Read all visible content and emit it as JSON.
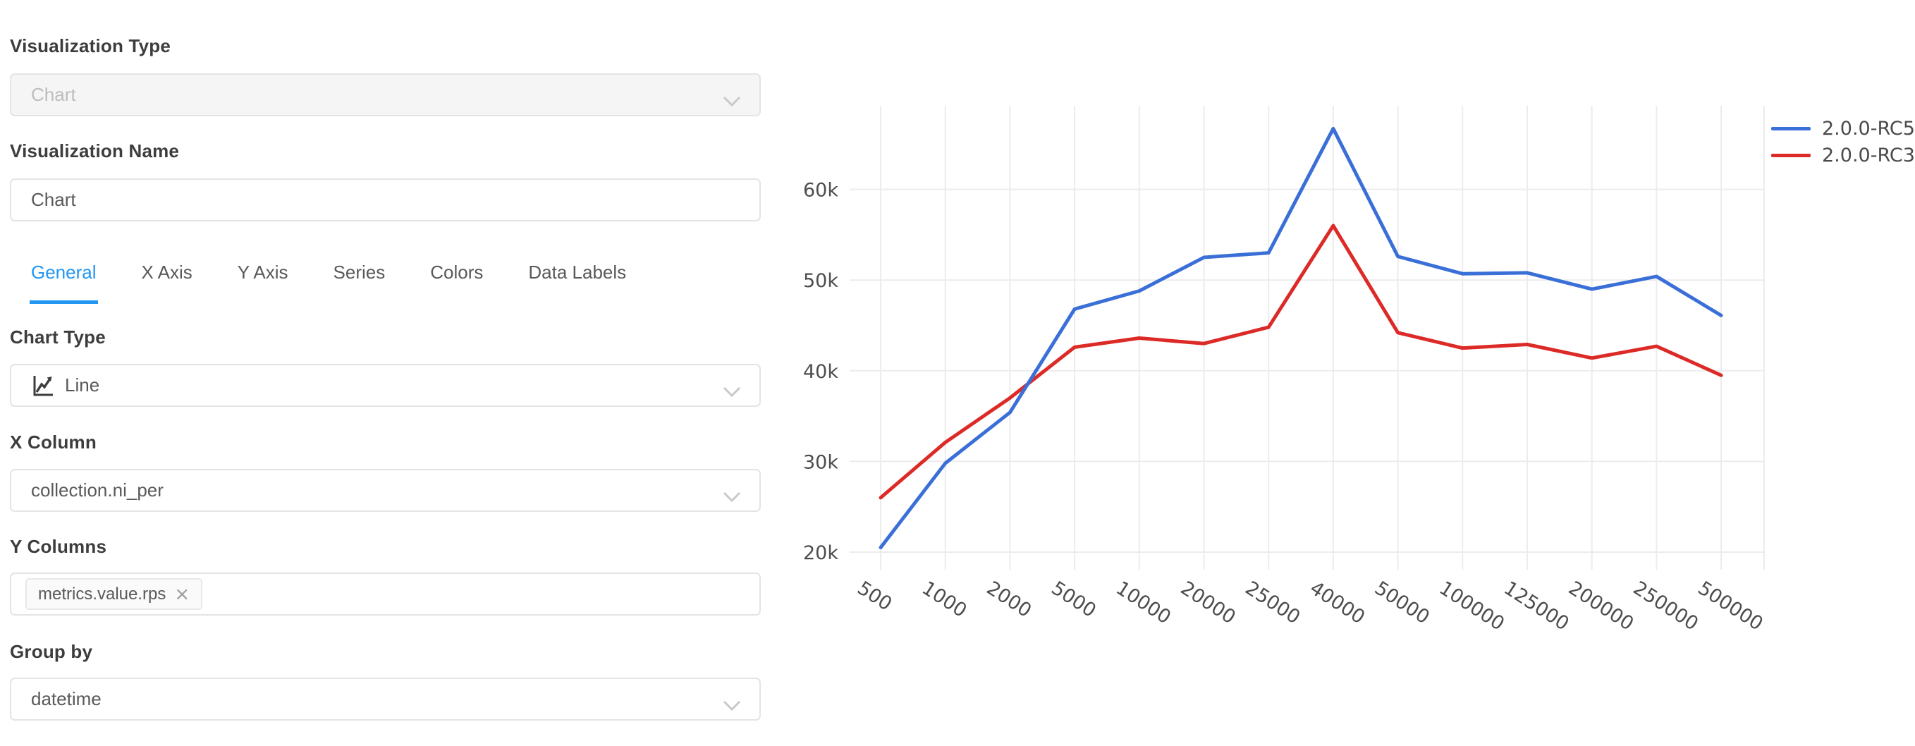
{
  "panel": {
    "tabs": [
      {
        "label": "General",
        "active": true
      },
      {
        "label": "X Axis",
        "active": false
      },
      {
        "label": "Y Axis",
        "active": false
      },
      {
        "label": "Series",
        "active": false
      },
      {
        "label": "Colors",
        "active": false
      },
      {
        "label": "Data Labels",
        "active": false
      }
    ],
    "fields": {
      "visualization_type": {
        "label": "Visualization Type",
        "value": "Chart",
        "disabled": true
      },
      "visualization_name": {
        "label": "Visualization Name",
        "value": "Chart"
      },
      "chart_type": {
        "label": "Chart Type",
        "value": "Line"
      },
      "x_column": {
        "label": "X Column",
        "value": "collection.ni_per"
      },
      "y_columns": {
        "label": "Y Columns",
        "tags": [
          {
            "text": "metrics.value.rps",
            "remove_label": "×"
          }
        ]
      },
      "group_by": {
        "label": "Group by",
        "value": "datetime"
      }
    }
  },
  "icons": {
    "chevron": "chevron-down",
    "chart_type": "line-chart",
    "tag_close": "×"
  },
  "colors": {
    "accent_blue": "#2196f3",
    "series_blue": "#3b6fd8",
    "series_red": "#dc2a27",
    "grid": "#ececec",
    "axis_text": "#4d4d4d"
  },
  "chart_data": {
    "type": "line",
    "categories": [
      500,
      1000,
      2000,
      5000,
      10000,
      20000,
      25000,
      40000,
      50000,
      100000,
      125000,
      200000,
      250000,
      500000
    ],
    "series": [
      {
        "name": "2.0.0-RC5",
        "color": "#3b6fd8",
        "values": [
          20500,
          29800,
          35400,
          46800,
          48800,
          52500,
          53000,
          66700,
          52600,
          50700,
          50800,
          49000,
          50400,
          46100
        ]
      },
      {
        "name": "2.0.0-RC3",
        "color": "#dc2a27",
        "values": [
          26000,
          32100,
          37000,
          42600,
          43600,
          43000,
          44800,
          56000,
          44200,
          42500,
          42900,
          41400,
          42700,
          39500
        ]
      }
    ],
    "title": "",
    "xlabel": "",
    "ylabel": "",
    "yticks": [
      20000,
      30000,
      40000,
      50000,
      60000
    ],
    "ytick_labels": [
      "20k",
      "30k",
      "40k",
      "50k",
      "60k"
    ],
    "ylim": [
      18500,
      68500
    ],
    "grid": true,
    "legend_position": "top-right",
    "x_label_rotation": 33
  }
}
